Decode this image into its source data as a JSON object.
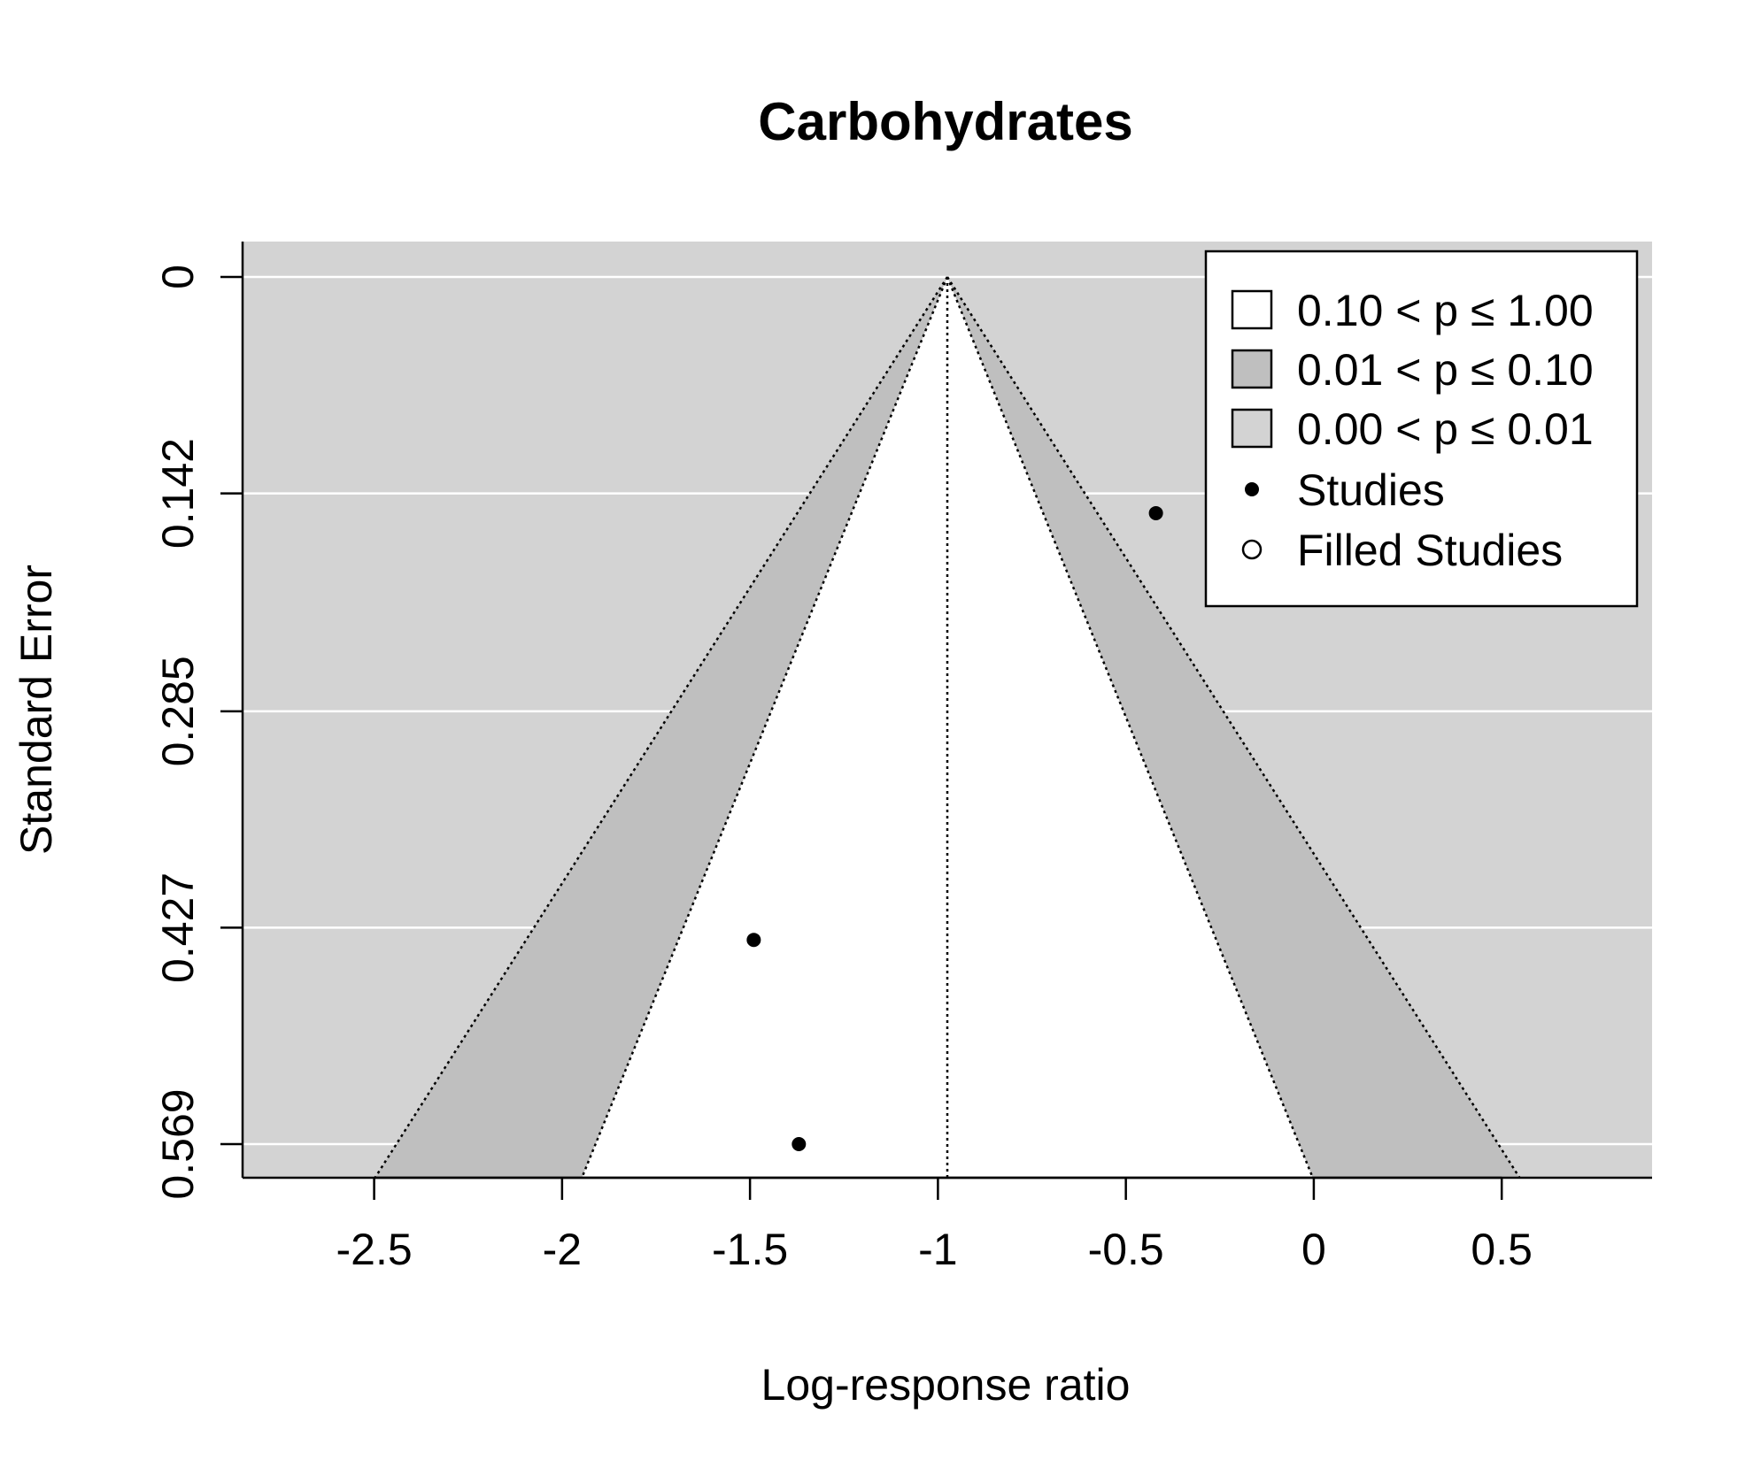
{
  "chart_data": {
    "type": "scatter",
    "subtype": "contour-enhanced funnel plot",
    "title": "Carbohydrates",
    "xlabel": "Log-response ratio",
    "ylabel": "Standard Error",
    "xlim": [
      -2.85,
      0.9
    ],
    "ylim": [
      0,
      0.569
    ],
    "y_reversed": true,
    "x_ticks": [
      -2.5,
      -2,
      -1.5,
      -1,
      -0.5,
      0,
      0.5
    ],
    "x_tick_labels": [
      "-2.5",
      "-2",
      "-1.5",
      "-1",
      "-0.5",
      "0",
      "0.5"
    ],
    "y_ticks": [
      0,
      0.142,
      0.285,
      0.427,
      0.569
    ],
    "y_tick_labels": [
      "0",
      "0.142",
      "0.285",
      "0.427",
      "0.569"
    ],
    "center": -0.975,
    "funnel_se_max": 0.592,
    "contours": [
      {
        "label": "0.10 < p ≤ 1.00",
        "z": 1.645,
        "color": "#ffffff"
      },
      {
        "label": "0.01 < p ≤ 0.10",
        "z": 2.576,
        "color": "#bfbfbf"
      },
      {
        "label": "0.00 < p ≤ 0.01",
        "color": "#d3d3d3"
      }
    ],
    "studies": [
      {
        "x": -0.42,
        "y": 0.155
      },
      {
        "x": -1.49,
        "y": 0.435
      },
      {
        "x": -1.37,
        "y": 0.569
      }
    ],
    "filled_studies": [],
    "grid": true,
    "legend_position": "top-right",
    "legend": [
      {
        "label": "0.10 < p ≤ 1.00",
        "kind": "box",
        "fill": "#ffffff"
      },
      {
        "label": "0.01 < p ≤ 0.10",
        "kind": "box",
        "fill": "#bfbfbf"
      },
      {
        "label": "0.00 < p ≤ 0.01",
        "kind": "box",
        "fill": "#d3d3d3"
      },
      {
        "label": "Studies",
        "kind": "dot-filled"
      },
      {
        "label": "Filled Studies",
        "kind": "dot-open"
      }
    ]
  }
}
